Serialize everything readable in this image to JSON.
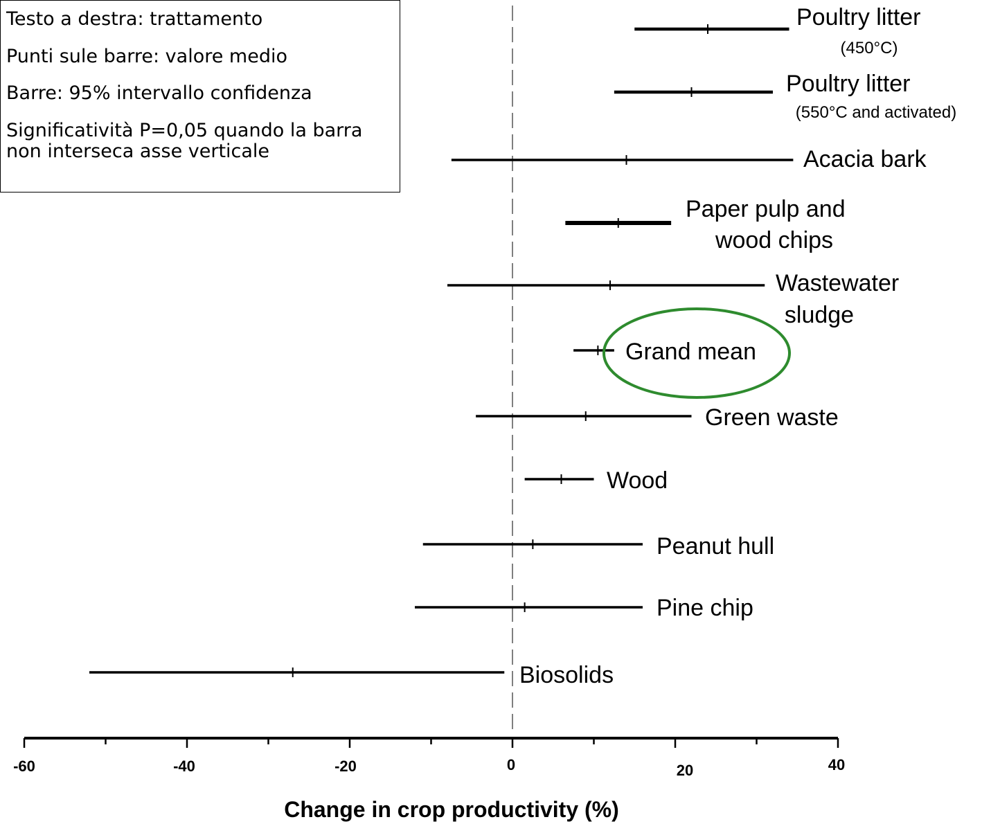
{
  "notes": [
    "Testo a destra: trattamento",
    "Punti sule barre: valore medio",
    "Barre: 95% intervallo confidenza",
    "Significatività P=0,05 quando la barra non interseca asse verticale"
  ],
  "colors": {
    "bar": "#000000",
    "highlight": "#2e8b2e",
    "zero_line": "#555555"
  },
  "chart_data": {
    "type": "forest",
    "xlabel": "Change in crop productivity (%)",
    "xlim": [
      -60,
      40
    ],
    "xticks": [
      -60,
      -40,
      -20,
      0,
      20,
      40
    ],
    "reference_line": 0,
    "highlighted": "Grand mean",
    "items": [
      {
        "label": "Poultry litter",
        "sublabel": "(450°C)",
        "mean": 24,
        "low": 15,
        "high": 34
      },
      {
        "label": "Poultry litter",
        "sublabel": "(550°C and activated)",
        "mean": 22,
        "low": 12.5,
        "high": 32
      },
      {
        "label": "Acacia bark",
        "sublabel": "",
        "mean": 14,
        "low": -7.5,
        "high": 34.5
      },
      {
        "label": "Paper pulp and",
        "sublabel": "wood chips",
        "mean": 13,
        "low": 6.5,
        "high": 19.5
      },
      {
        "label": "Wastewater",
        "sublabel": "sludge",
        "mean": 12,
        "low": -8,
        "high": 31
      },
      {
        "label": "Grand mean",
        "sublabel": "",
        "mean": 10.5,
        "low": 7.5,
        "high": 12.5
      },
      {
        "label": "Green waste",
        "sublabel": "",
        "mean": 9,
        "low": -4.5,
        "high": 22
      },
      {
        "label": "Wood",
        "sublabel": "",
        "mean": 6,
        "low": 1.5,
        "high": 10
      },
      {
        "label": "Peanut hull",
        "sublabel": "",
        "mean": 2.5,
        "low": -11,
        "high": 16
      },
      {
        "label": "Pine chip",
        "sublabel": "",
        "mean": 1.5,
        "low": -12,
        "high": 16
      },
      {
        "label": "Biosolids",
        "sublabel": "",
        "mean": -27,
        "low": -52,
        "high": -1
      }
    ]
  }
}
